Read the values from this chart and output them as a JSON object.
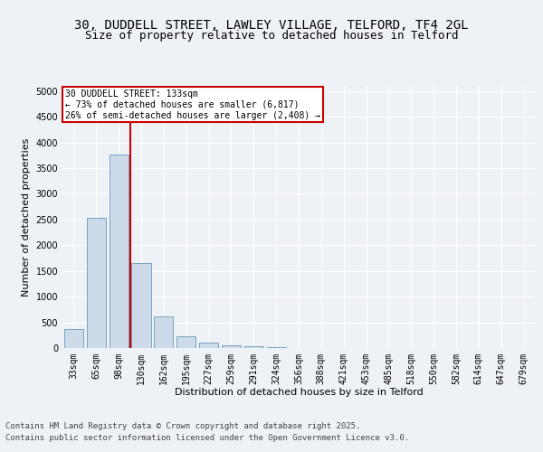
{
  "title_line1": "30, DUDDELL STREET, LAWLEY VILLAGE, TELFORD, TF4 2GL",
  "title_line2": "Size of property relative to detached houses in Telford",
  "xlabel": "Distribution of detached houses by size in Telford",
  "ylabel": "Number of detached properties",
  "categories": [
    "33sqm",
    "65sqm",
    "98sqm",
    "130sqm",
    "162sqm",
    "195sqm",
    "227sqm",
    "259sqm",
    "291sqm",
    "324sqm",
    "356sqm",
    "388sqm",
    "421sqm",
    "453sqm",
    "485sqm",
    "518sqm",
    "550sqm",
    "582sqm",
    "614sqm",
    "647sqm",
    "679sqm"
  ],
  "values": [
    375,
    2530,
    3760,
    1650,
    620,
    230,
    100,
    55,
    30,
    10,
    5,
    2,
    1,
    0,
    0,
    0,
    0,
    0,
    0,
    0,
    0
  ],
  "bar_color": "#ccdaea",
  "bar_edge_color": "#6699bb",
  "vline_color": "#cc0000",
  "annotation_box_color": "#cc0000",
  "annotation_text_line1": "30 DUDDELL STREET: 133sqm",
  "annotation_text_line2": "← 73% of detached houses are smaller (6,817)",
  "annotation_text_line3": "26% of semi-detached houses are larger (2,408) →",
  "ylim": [
    0,
    5100
  ],
  "yticks": [
    0,
    500,
    1000,
    1500,
    2000,
    2500,
    3000,
    3500,
    4000,
    4500,
    5000
  ],
  "footer_line1": "Contains HM Land Registry data © Crown copyright and database right 2025.",
  "footer_line2": "Contains public sector information licensed under the Open Government Licence v3.0.",
  "bg_color": "#eef2f7",
  "plot_bg_color": "#eef2f7",
  "grid_color": "#ffffff",
  "title_fontsize": 10,
  "subtitle_fontsize": 9,
  "axis_label_fontsize": 8,
  "tick_fontsize": 7,
  "annotation_fontsize": 7,
  "footer_fontsize": 6.5
}
